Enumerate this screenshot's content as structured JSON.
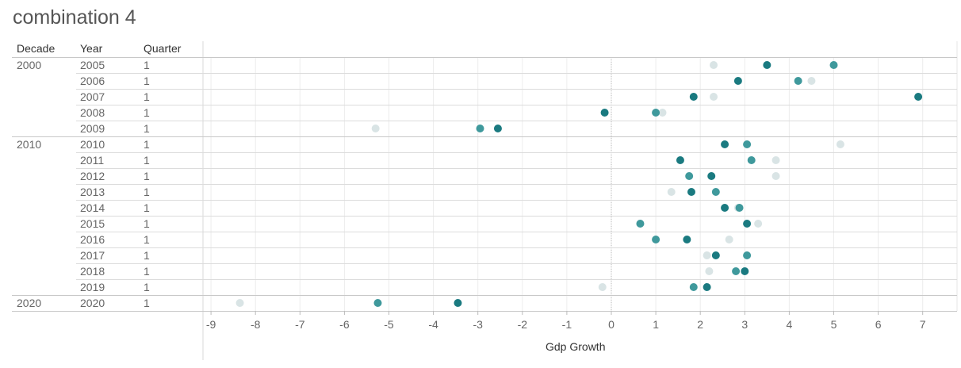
{
  "title": "combination 4",
  "headers": {
    "decade": "Decade",
    "year": "Year",
    "quarter": "Quarter"
  },
  "colors": {
    "dark": "#1a7a80",
    "medium": "#3f999c",
    "light": "#d9e4e5"
  },
  "chart_data": {
    "type": "scatter",
    "title": "combination 4",
    "xlabel": "Gdp Growth",
    "ylabel": "",
    "xlim": [
      -9.2,
      7.3
    ],
    "xticks": [
      -9,
      -8,
      -7,
      -6,
      -5,
      -4,
      -3,
      -2,
      -1,
      0,
      1,
      2,
      3,
      4,
      5,
      6,
      7
    ],
    "grid": true,
    "rows": [
      {
        "decade": "2000",
        "year": "2005",
        "quarter": "1",
        "points": [
          {
            "x": 2.3,
            "shade": "light"
          },
          {
            "x": 3.5,
            "shade": "dark"
          },
          {
            "x": 5.0,
            "shade": "medium"
          }
        ]
      },
      {
        "decade": "",
        "year": "2006",
        "quarter": "1",
        "points": [
          {
            "x": 2.85,
            "shade": "dark"
          },
          {
            "x": 4.2,
            "shade": "medium"
          },
          {
            "x": 4.5,
            "shade": "light"
          }
        ]
      },
      {
        "decade": "",
        "year": "2007",
        "quarter": "1",
        "points": [
          {
            "x": 1.85,
            "shade": "dark"
          },
          {
            "x": 2.3,
            "shade": "light"
          },
          {
            "x": 6.9,
            "shade": "dark"
          }
        ]
      },
      {
        "decade": "",
        "year": "2008",
        "quarter": "1",
        "points": [
          {
            "x": -0.15,
            "shade": "dark"
          },
          {
            "x": 1.0,
            "shade": "medium"
          },
          {
            "x": 1.15,
            "shade": "light"
          }
        ]
      },
      {
        "decade": "",
        "year": "2009",
        "quarter": "1",
        "points": [
          {
            "x": -5.3,
            "shade": "light"
          },
          {
            "x": -2.95,
            "shade": "medium"
          },
          {
            "x": -2.55,
            "shade": "dark"
          }
        ]
      },
      {
        "decade": "2010",
        "year": "2010",
        "quarter": "1",
        "points": [
          {
            "x": 2.55,
            "shade": "dark"
          },
          {
            "x": 3.05,
            "shade": "medium"
          },
          {
            "x": 5.15,
            "shade": "light"
          }
        ]
      },
      {
        "decade": "",
        "year": "2011",
        "quarter": "1",
        "points": [
          {
            "x": 1.55,
            "shade": "dark"
          },
          {
            "x": 3.15,
            "shade": "medium"
          },
          {
            "x": 3.7,
            "shade": "light"
          }
        ]
      },
      {
        "decade": "",
        "year": "2012",
        "quarter": "1",
        "points": [
          {
            "x": 1.75,
            "shade": "medium"
          },
          {
            "x": 2.25,
            "shade": "dark"
          },
          {
            "x": 3.7,
            "shade": "light"
          }
        ]
      },
      {
        "decade": "",
        "year": "2013",
        "quarter": "1",
        "points": [
          {
            "x": 1.35,
            "shade": "light"
          },
          {
            "x": 1.8,
            "shade": "dark"
          },
          {
            "x": 2.35,
            "shade": "medium"
          }
        ]
      },
      {
        "decade": "",
        "year": "2014",
        "quarter": "1",
        "points": [
          {
            "x": 2.55,
            "shade": "dark"
          },
          {
            "x": 2.85,
            "shade": "light"
          },
          {
            "x": 2.88,
            "shade": "medium"
          }
        ]
      },
      {
        "decade": "",
        "year": "2015",
        "quarter": "1",
        "points": [
          {
            "x": 0.65,
            "shade": "medium"
          },
          {
            "x": 3.05,
            "shade": "dark"
          },
          {
            "x": 3.3,
            "shade": "light"
          }
        ]
      },
      {
        "decade": "",
        "year": "2016",
        "quarter": "1",
        "points": [
          {
            "x": 1.0,
            "shade": "medium"
          },
          {
            "x": 1.7,
            "shade": "dark"
          },
          {
            "x": 2.65,
            "shade": "light"
          }
        ]
      },
      {
        "decade": "",
        "year": "2017",
        "quarter": "1",
        "points": [
          {
            "x": 2.15,
            "shade": "light"
          },
          {
            "x": 2.35,
            "shade": "dark"
          },
          {
            "x": 3.05,
            "shade": "medium"
          }
        ]
      },
      {
        "decade": "",
        "year": "2018",
        "quarter": "1",
        "points": [
          {
            "x": 2.2,
            "shade": "light"
          },
          {
            "x": 2.8,
            "shade": "medium"
          },
          {
            "x": 3.0,
            "shade": "dark"
          }
        ]
      },
      {
        "decade": "",
        "year": "2019",
        "quarter": "1",
        "points": [
          {
            "x": -0.2,
            "shade": "light"
          },
          {
            "x": 1.85,
            "shade": "medium"
          },
          {
            "x": 2.15,
            "shade": "dark"
          }
        ]
      },
      {
        "decade": "2020",
        "year": "2020",
        "quarter": "1",
        "points": [
          {
            "x": -8.35,
            "shade": "light"
          },
          {
            "x": -5.25,
            "shade": "medium"
          },
          {
            "x": -3.45,
            "shade": "dark"
          }
        ]
      }
    ]
  }
}
